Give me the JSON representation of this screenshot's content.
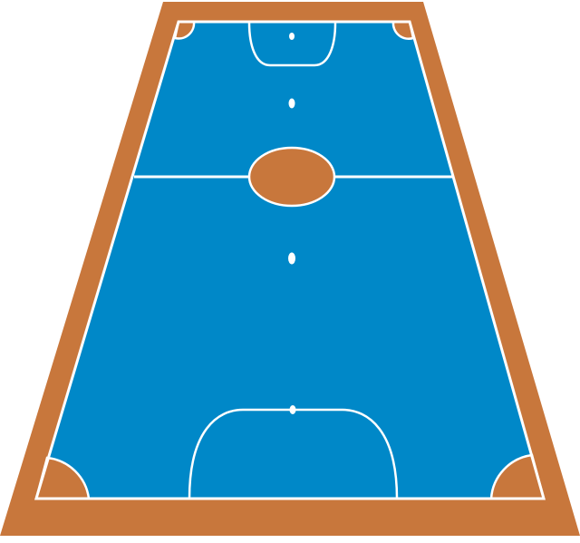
{
  "court": {
    "type": "futsal-court-perspective",
    "colors": {
      "surround": "#C8773C",
      "playing_surface": "#0088C8",
      "lines": "#FFFFFF",
      "center_circle_fill": "#C8773C",
      "corner_arc_fill": "#C8773C",
      "marks": "#FFFFFF"
    },
    "markings": [
      "boundary-line",
      "halfway-line",
      "center-circle",
      "center-spot",
      "penalty-area-far",
      "penalty-area-near",
      "penalty-spot-far",
      "penalty-spot-near",
      "second-penalty-spot-far",
      "second-penalty-spot-near",
      "corner-arcs"
    ]
  }
}
